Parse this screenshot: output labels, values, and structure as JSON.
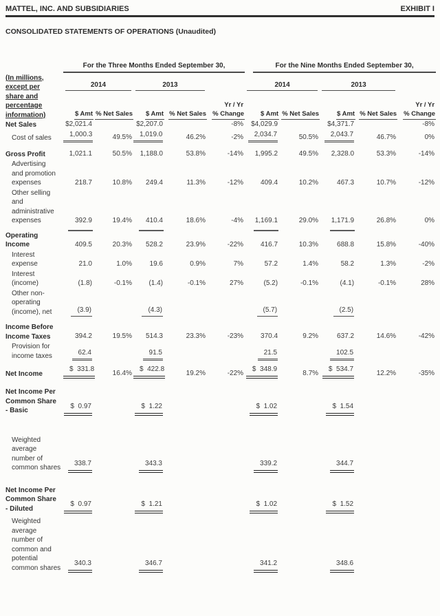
{
  "page": {
    "company": "MATTEL, INC. AND SUBSIDIARIES",
    "exhibit": "EXHIBIT I",
    "title": "CONSOLIDATED STATEMENTS OF OPERATIONS (Unaudited)"
  },
  "table": {
    "units_note": "(In millions,\nexcept per\nshare and\npercentage\ninformation)",
    "group_headers": [
      "For the Three Months Ended September 30,",
      "For the Nine Months Ended September 30,"
    ],
    "year_headers": [
      "2014",
      "2013",
      "2014",
      "2013"
    ],
    "sub_headers": {
      "amt": "$ Amt",
      "pct": "% Net Sales",
      "yryr": "Yr / Yr",
      "change": "% Change"
    },
    "rows": [
      {
        "label": "Net Sales",
        "bold": true,
        "values": [
          "$2,021.4",
          "",
          "$2,207.0",
          "",
          "-8%",
          "$4,029.9",
          "",
          "$4,371.7",
          "",
          "-8%"
        ]
      },
      {
        "label": "Cost of sales",
        "values": [
          "1,000.3",
          "49.5%",
          "1,019.0",
          "46.2%",
          "-2%",
          "2,034.7",
          "50.5%",
          "2,043.7",
          "46.7%",
          "0%"
        ],
        "u": {
          "0": "d",
          "2": "d",
          "5": "d",
          "7": "d"
        }
      },
      {
        "spacer": 9
      },
      {
        "label": "Gross Profit",
        "bold": true,
        "values": [
          "1,021.1",
          "50.5%",
          "1,188.0",
          "53.8%",
          "-14%",
          "1,995.2",
          "49.5%",
          "2,328.0",
          "53.3%",
          "-14%"
        ]
      },
      {
        "label": "Advertising\nand promotion\nexpenses",
        "values": [
          "218.7",
          "10.8%",
          "249.4",
          "11.3%",
          "-12%",
          "409.4",
          "10.2%",
          "467.3",
          "10.7%",
          "-12%"
        ]
      },
      {
        "label": "Other selling\nand\nadministrative\nexpenses",
        "values": [
          "392.9",
          "19.4%",
          "410.4",
          "18.6%",
          "-4%",
          "1,169.1",
          "29.0%",
          "1,171.9",
          "26.8%",
          "0%"
        ]
      },
      {
        "rule": [
          0,
          2,
          5,
          7
        ]
      },
      {
        "label": "Operating\nIncome",
        "bold": true,
        "values": [
          "409.5",
          "20.3%",
          "528.2",
          "23.9%",
          "-22%",
          "416.7",
          "10.3%",
          "688.8",
          "15.8%",
          "-40%"
        ]
      },
      {
        "label": "Interest\nexpense",
        "values": [
          "21.0",
          "1.0%",
          "19.6",
          "0.9%",
          "7%",
          "57.2",
          "1.4%",
          "58.2",
          "1.3%",
          "-2%"
        ]
      },
      {
        "label": "Interest\n(income)",
        "values": [
          "(1.8)",
          "-0.1%",
          "(1.4)",
          "-0.1%",
          "27%",
          "(5.2)",
          "-0.1%",
          "(4.1)",
          "-0.1%",
          "28%"
        ]
      },
      {
        "label": "Other non-\noperating\n(income), net",
        "values": [
          "(3.9)",
          "",
          "(4.3)",
          "",
          "",
          "(5.7)",
          "",
          "(2.5)",
          "",
          ""
        ],
        "u": {
          "0": "s",
          "2": "s",
          "5": "s",
          "7": "s"
        }
      },
      {
        "spacer": 8
      },
      {
        "label": "Income Before\nIncome Taxes",
        "bold": true,
        "values": [
          "394.2",
          "19.5%",
          "514.3",
          "23.3%",
          "-23%",
          "370.4",
          "9.2%",
          "637.2",
          "14.6%",
          "-42%"
        ]
      },
      {
        "label": "Provision for\nincome taxes",
        "values": [
          "62.4",
          "",
          "91.5",
          "",
          "",
          "21.5",
          "",
          "102.5",
          "",
          ""
        ],
        "u": {
          "0": "d",
          "2": "d",
          "5": "d",
          "7": "d"
        }
      },
      {
        "spacer": 5
      },
      {
        "label": "Net Income",
        "bold": true,
        "values": [
          "$  331.8",
          "16.4%",
          "$  422.8",
          "19.2%",
          "-22%",
          "$  348.9",
          "8.7%",
          "$  534.7",
          "12.2%",
          "-35%"
        ],
        "u": {
          "0": "h",
          "2": "h",
          "5": "h",
          "7": "h"
        }
      },
      {
        "spacer": 12
      },
      {
        "label": "Net Income Per\nCommon Share\n- Basic",
        "bold": true,
        "values": [
          "$  0.97",
          "",
          "$  1.22",
          "",
          "",
          "$  1.02",
          "",
          "$  1.54",
          "",
          ""
        ],
        "u": {
          "0": "h",
          "2": "h",
          "5": "h",
          "7": "h"
        }
      },
      {
        "spacer": 28
      },
      {
        "label": "Weighted\naverage\nnumber of\ncommon shares",
        "values": [
          "338.7",
          "",
          "343.3",
          "",
          "",
          "339.2",
          "",
          "344.7",
          "",
          ""
        ],
        "u": {
          "0": "h",
          "2": "h",
          "5": "h",
          "7": "h"
        }
      },
      {
        "spacer": 18
      },
      {
        "label": "Net Income Per\nCommon Share\n- Diluted",
        "bold": true,
        "values": [
          "$  0.97",
          "",
          "$  1.21",
          "",
          "",
          "$  1.02",
          "",
          "$  1.52",
          "",
          ""
        ],
        "u": {
          "0": "h",
          "2": "h",
          "5": "h",
          "7": "h"
        }
      },
      {
        "spacer": 4
      },
      {
        "label": "Weighted\naverage\nnumber of\ncommon and\npotential\ncommon shares",
        "values": [
          "340.3",
          "",
          "346.7",
          "",
          "",
          "341.2",
          "",
          "348.6",
          "",
          ""
        ],
        "u": {
          "0": "h",
          "2": "h",
          "5": "h",
          "7": "h"
        }
      }
    ]
  }
}
